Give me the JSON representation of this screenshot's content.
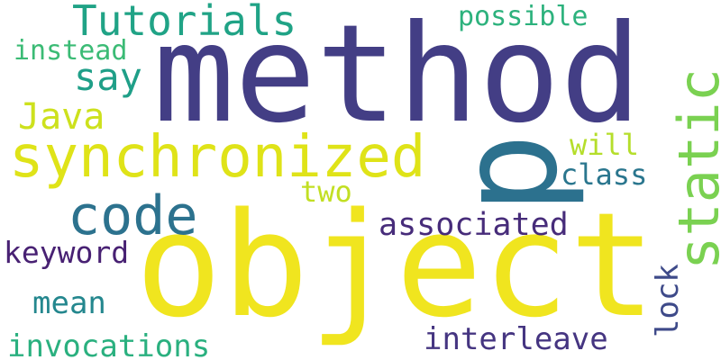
{
  "words": [
    {
      "text": "method",
      "color": "#433e85"
    },
    {
      "text": "object",
      "color": "#f0e51f"
    },
    {
      "text": "p",
      "color": "#2c718e"
    },
    {
      "text": "synchronized",
      "color": "#dfe318"
    },
    {
      "text": "static",
      "color": "#7ad151"
    },
    {
      "text": "code",
      "color": "#2c728e"
    },
    {
      "text": "Tutorials",
      "color": "#20a386"
    },
    {
      "text": "Java",
      "color": "#cde11d"
    },
    {
      "text": "say",
      "color": "#1f9f88"
    },
    {
      "text": "possible",
      "color": "#2db27d"
    },
    {
      "text": "instead",
      "color": "#3bbb75"
    },
    {
      "text": "associated",
      "color": "#472c7a"
    },
    {
      "text": "keyword",
      "color": "#482173"
    },
    {
      "text": "interleave",
      "color": "#453581"
    },
    {
      "text": "invocations",
      "color": "#2ab07f"
    },
    {
      "text": "mean",
      "color": "#24878e"
    },
    {
      "text": "lock",
      "color": "#3e4a89"
    },
    {
      "text": "two",
      "color": "#c2df23"
    },
    {
      "text": "will",
      "color": "#b5de2b"
    },
    {
      "text": "class",
      "color": "#2a768e"
    }
  ]
}
